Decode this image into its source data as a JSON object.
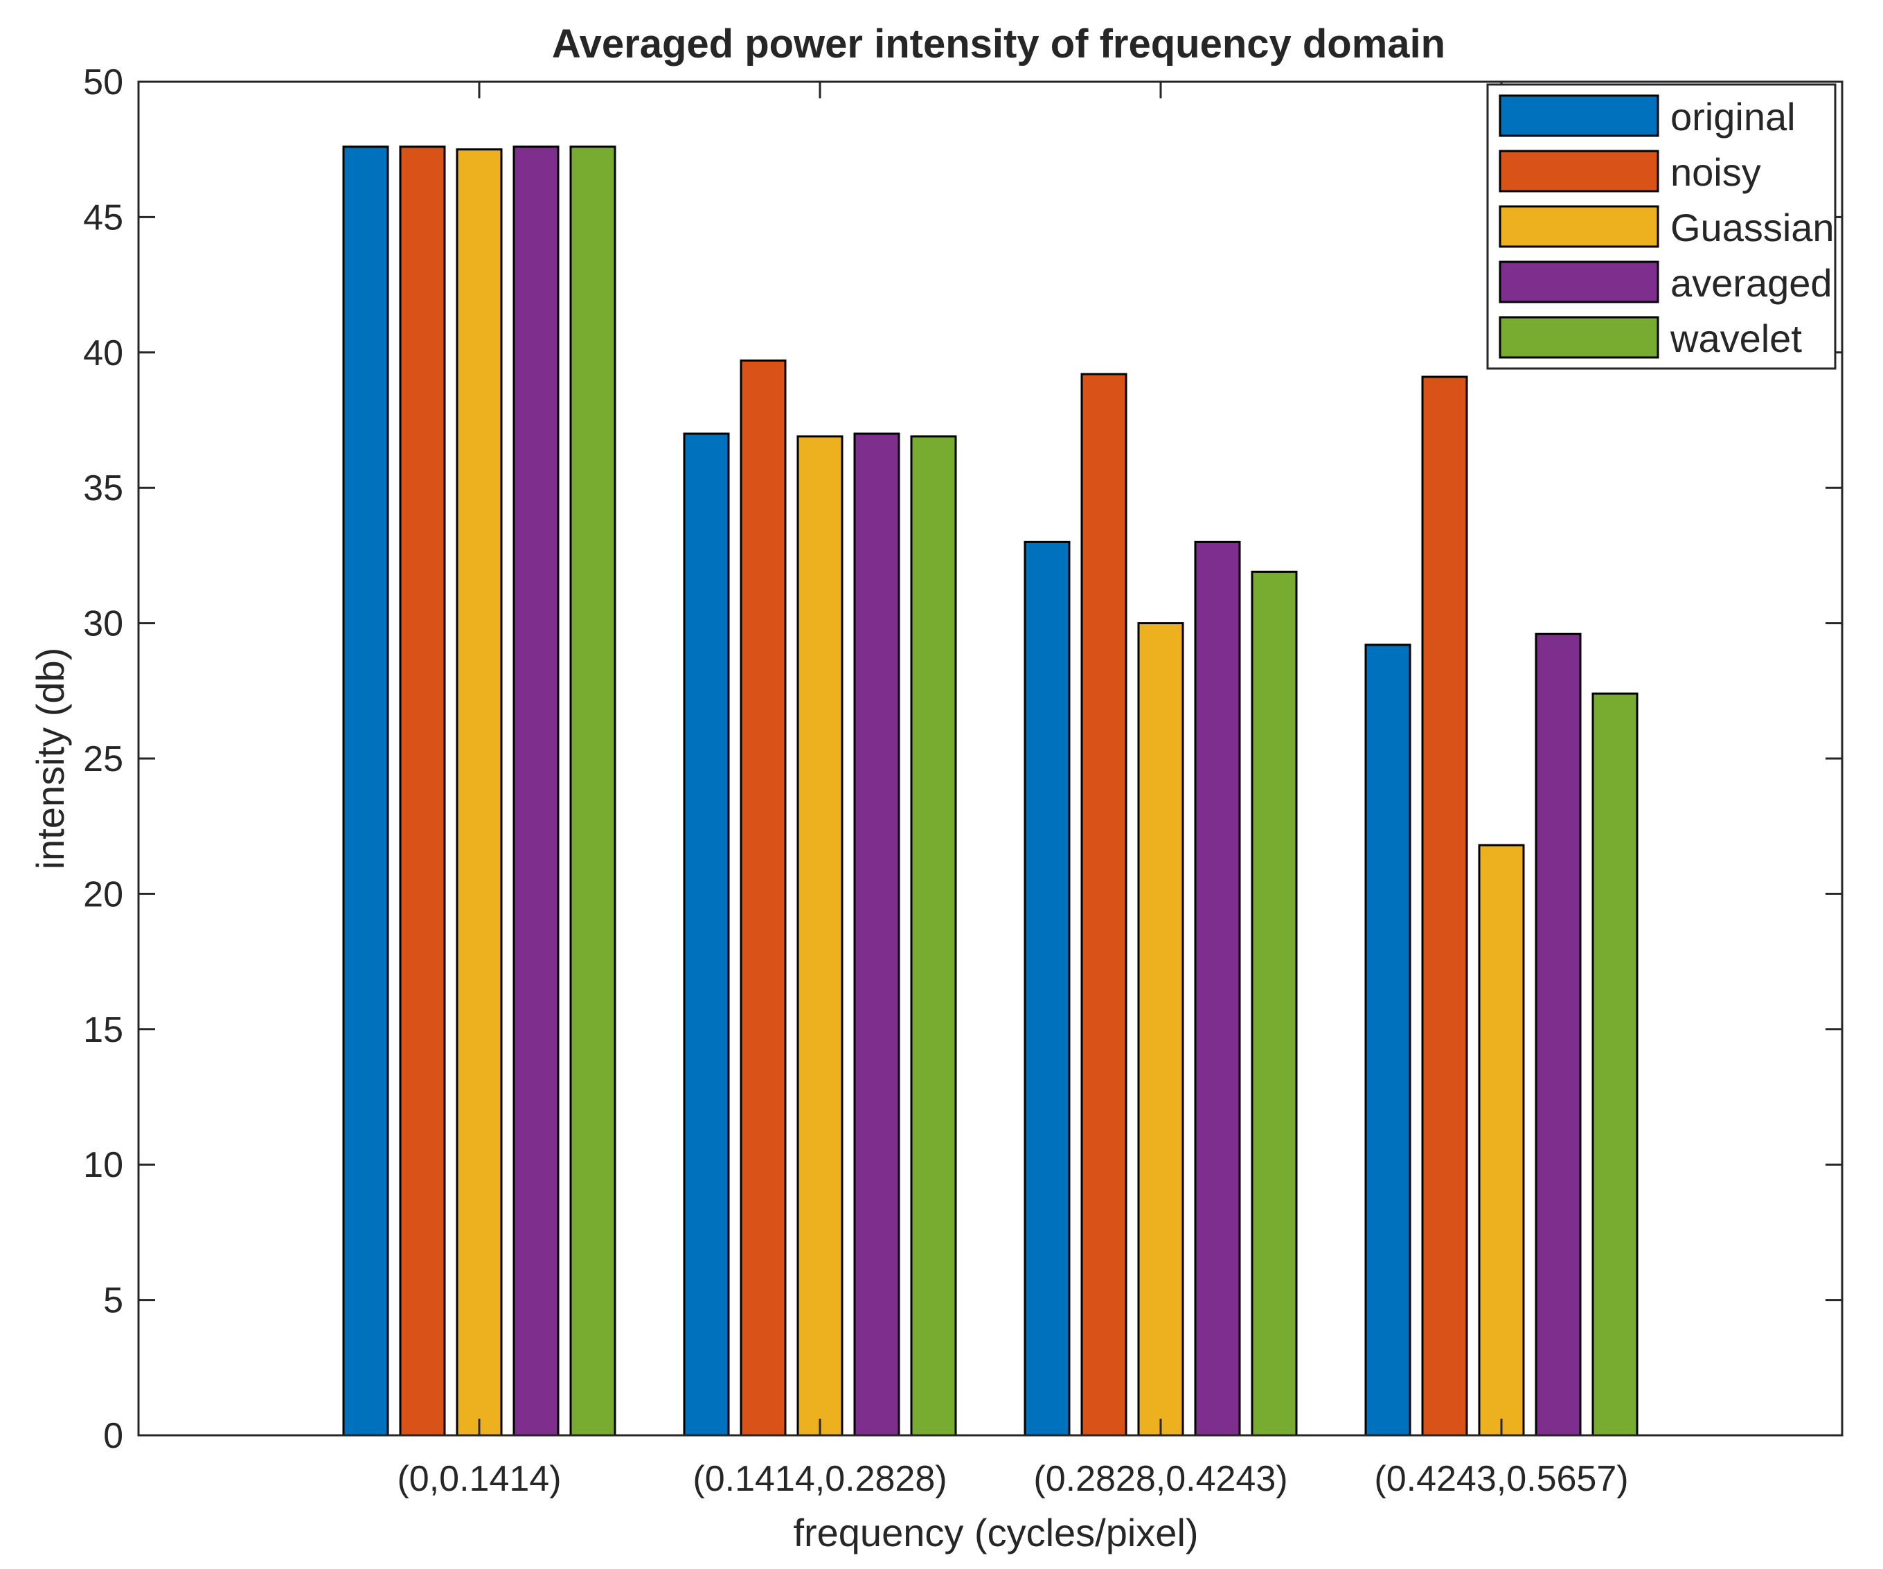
{
  "chart_data": {
    "type": "bar",
    "title": "Averaged power intensity of frequency domain",
    "xlabel": "frequency (cycles/pixel)",
    "ylabel": "intensity (db)",
    "ylim": [
      0,
      50
    ],
    "yticks": [
      0,
      5,
      10,
      15,
      20,
      25,
      30,
      35,
      40,
      45,
      50
    ],
    "categories": [
      "(0,0.1414)",
      "(0.1414,0.2828)",
      "(0.2828,0.4243)",
      "(0.4243,0.5657)"
    ],
    "legend_position": "top-right",
    "grid": false,
    "series": [
      {
        "name": "original",
        "color": "#0072BD",
        "values": [
          47.6,
          37.0,
          33.0,
          29.2
        ]
      },
      {
        "name": "noisy",
        "color": "#D95319",
        "values": [
          47.6,
          39.7,
          39.2,
          39.1
        ]
      },
      {
        "name": "Guassian",
        "color": "#EDB120",
        "values": [
          47.5,
          36.9,
          30.0,
          21.8
        ]
      },
      {
        "name": "averaged",
        "color": "#7E2F8E",
        "values": [
          47.6,
          37.0,
          33.0,
          29.6
        ]
      },
      {
        "name": "wavelet",
        "color": "#77AC30",
        "values": [
          47.6,
          36.9,
          31.9,
          27.4
        ]
      }
    ]
  }
}
